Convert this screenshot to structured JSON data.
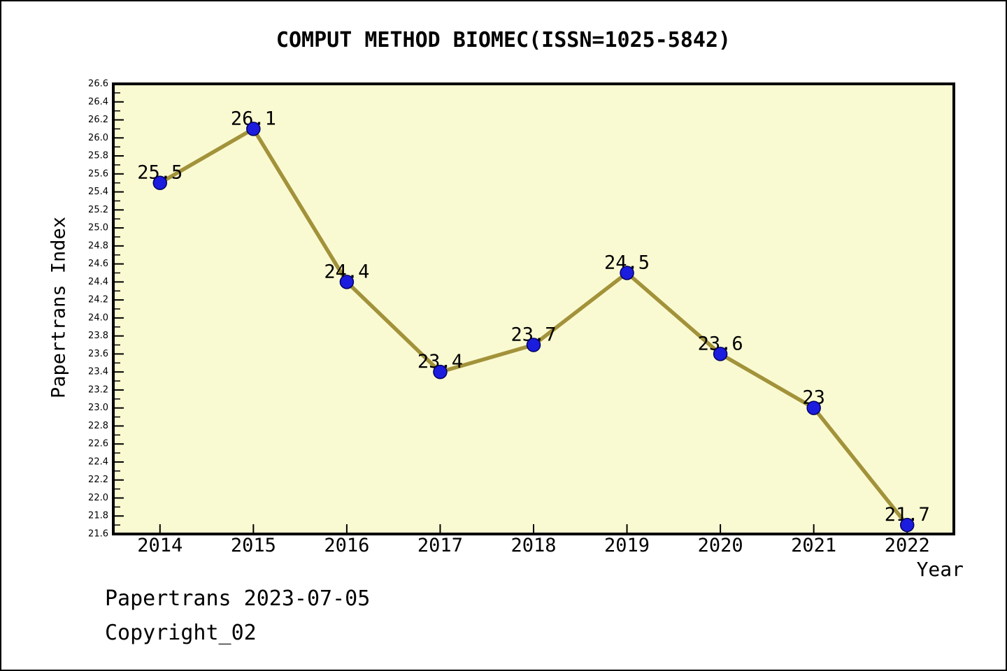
{
  "page": {
    "footer_line1": "Papertrans 2023-07-05",
    "footer_line2": "Copyright_02"
  },
  "chart_data": {
    "type": "line",
    "title": "COMPUT METHOD BIOMEC(ISSN=1025-5842)",
    "xlabel": "Year",
    "ylabel": "Papertrans Index",
    "categories": [
      "2014",
      "2015",
      "2016",
      "2017",
      "2018",
      "2019",
      "2020",
      "2021",
      "2022"
    ],
    "values": [
      25.5,
      26.1,
      24.4,
      23.4,
      23.7,
      24.5,
      23.6,
      23,
      21.7
    ],
    "point_labels": [
      "25.5",
      "26.1",
      "24.4",
      "23.4",
      "23.7",
      "24.5",
      "23.6",
      "23",
      "21.7"
    ],
    "ylim": [
      21.6,
      26.6
    ],
    "ytick_step": 0.2,
    "ytick_minor_step": 0.1,
    "ytick_labels": [
      "26.6",
      "26.4",
      "26.2",
      "26.0",
      "25.8",
      "25.6",
      "25.4",
      "25.2",
      "25.0",
      "24.8",
      "24.6",
      "24.4",
      "24.2",
      "24.0",
      "23.8",
      "23.6",
      "23.4",
      "23.2",
      "23.0",
      "22.8",
      "22.6",
      "22.4",
      "22.2",
      "22.0",
      "21.8",
      "21.6"
    ],
    "grid": "off",
    "legend": "none",
    "colors": {
      "plot_background": "#FAFAD2",
      "frame": "#000000",
      "line": "#A2923A",
      "marker_fill": "#1C1CDE",
      "marker_edge": "#000060",
      "text": "#000000"
    }
  }
}
